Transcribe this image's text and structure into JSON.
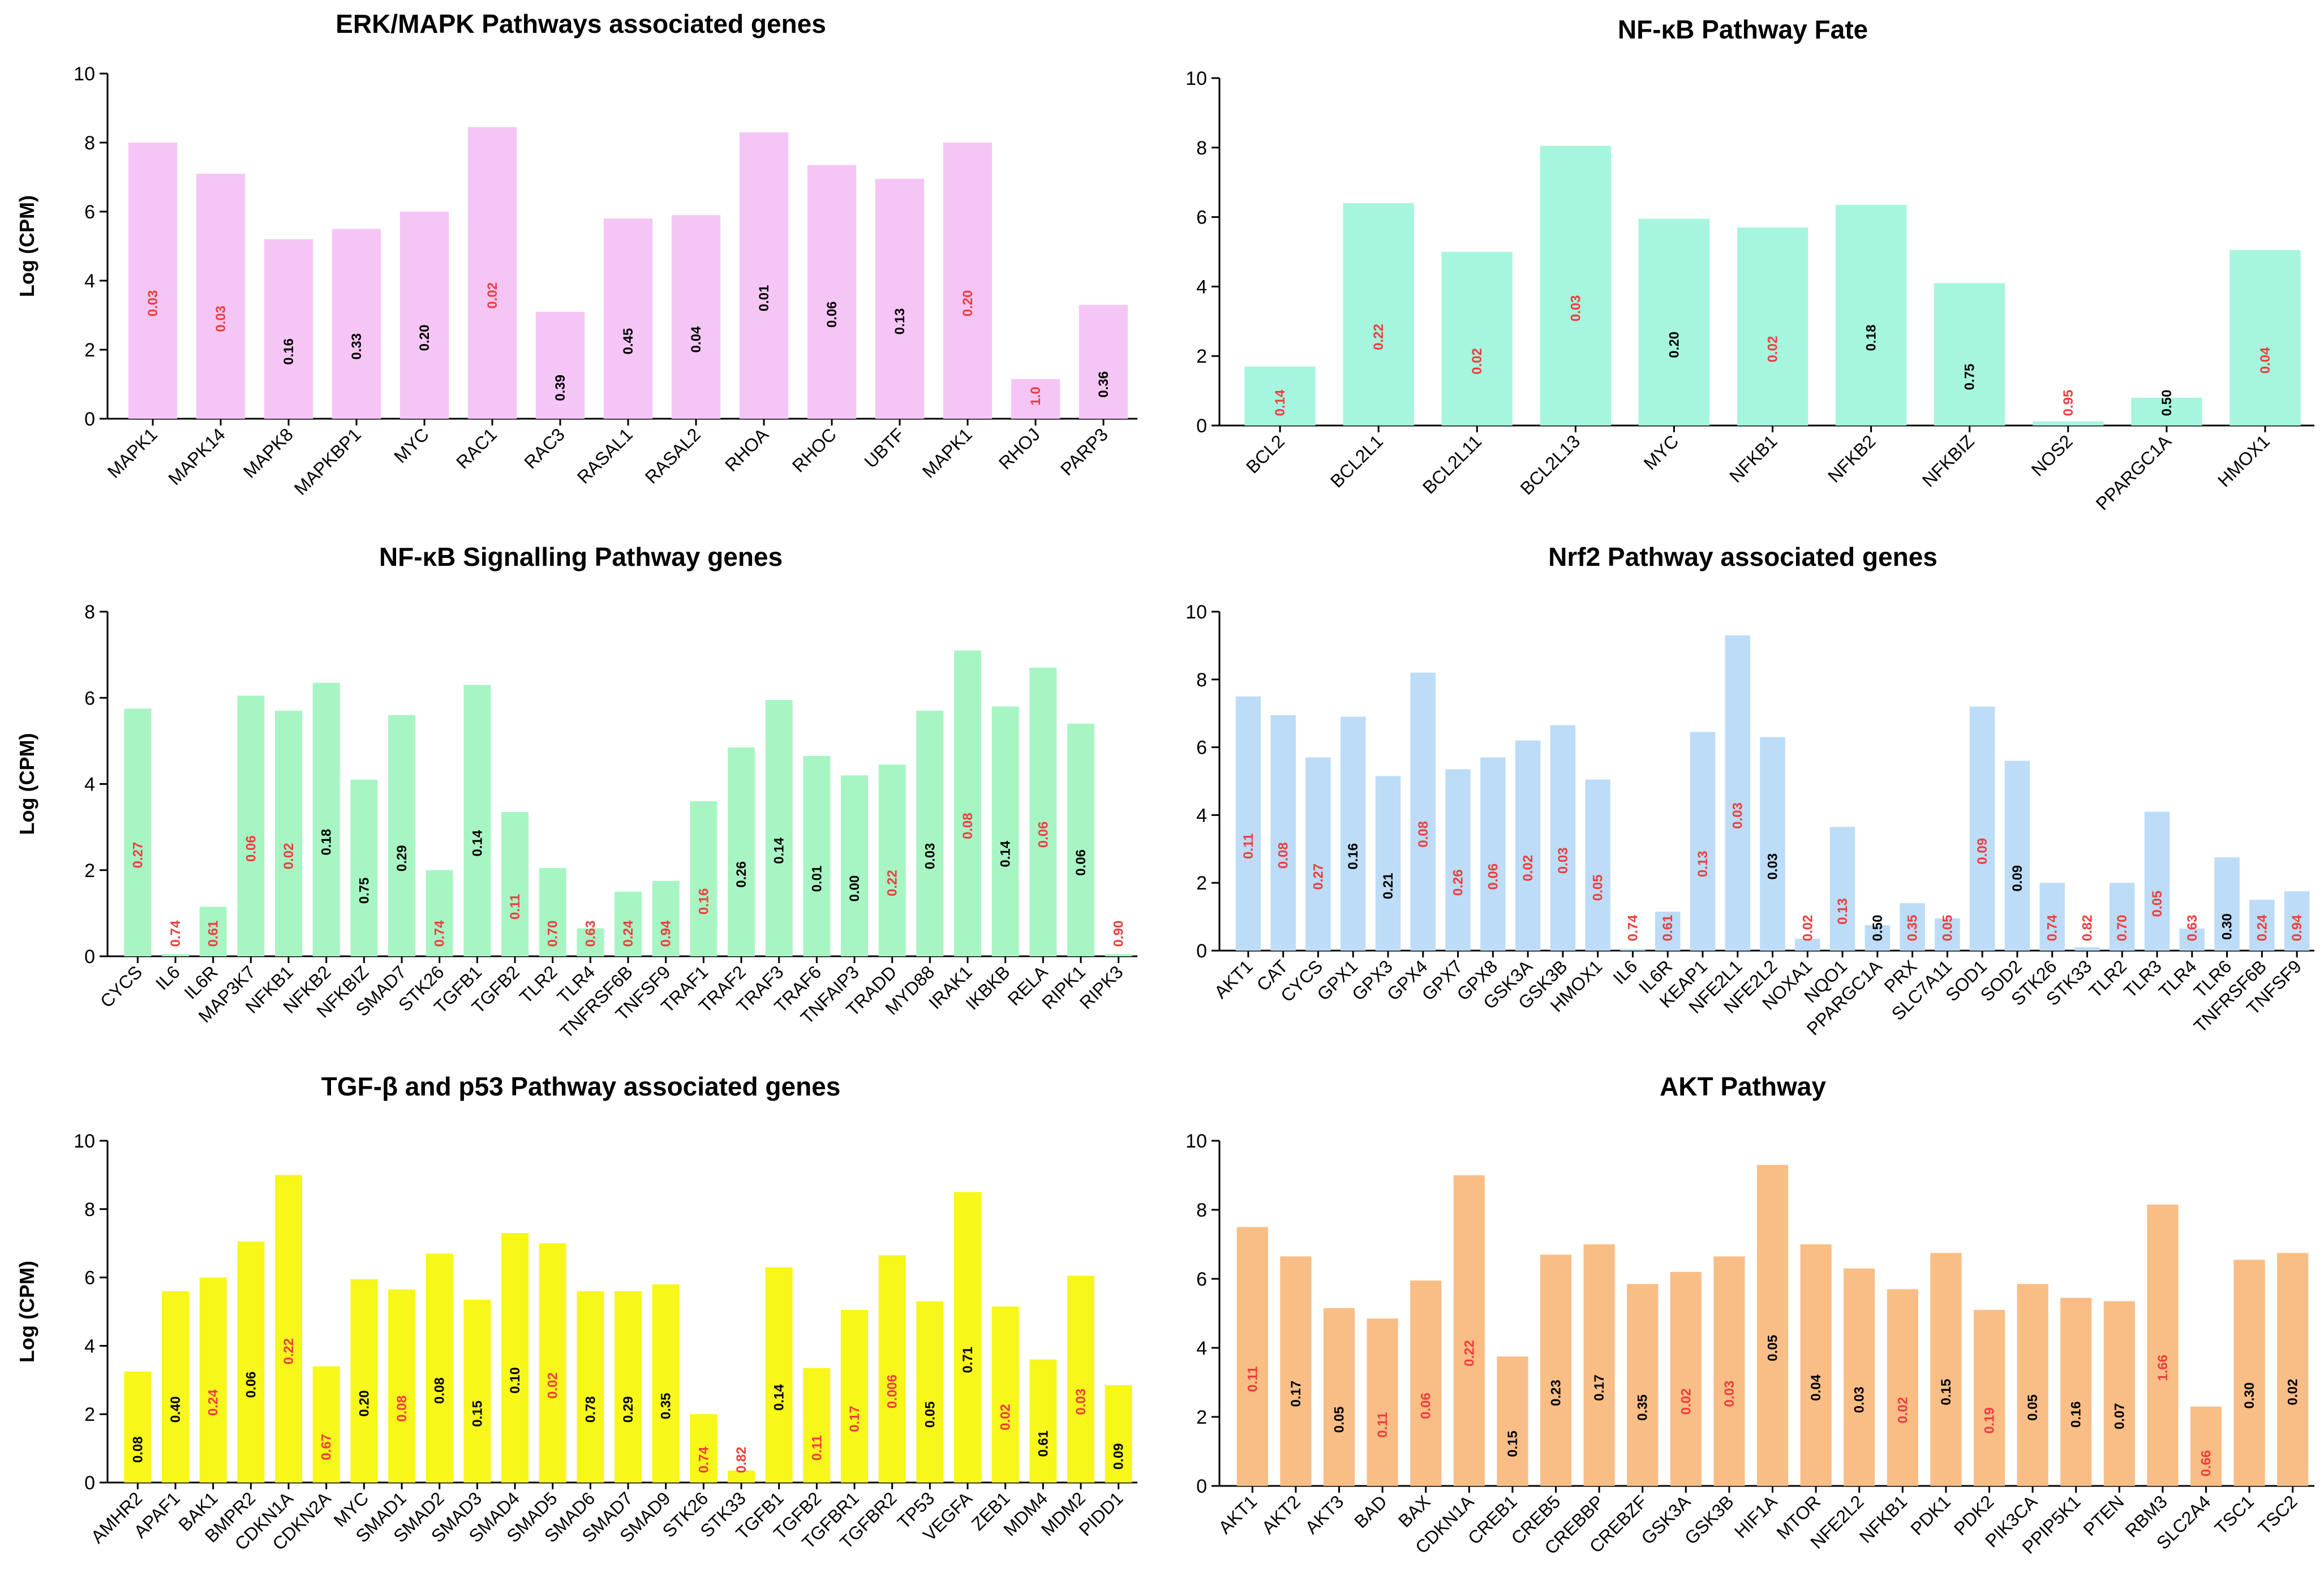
{
  "chart_data": [
    {
      "type": "bar",
      "title": "ERK/MAPK Pathways associated genes",
      "ylabel": "Log (CPM)",
      "xlabel": "",
      "ylim": [
        0,
        10
      ],
      "yticks": [
        0,
        2,
        4,
        6,
        8,
        10
      ],
      "bar_color": "#f5c6f5",
      "categories": [
        "MAPK1",
        "MAPK14",
        "MAPK8",
        "MAPKBP1",
        "MYC",
        "RAC1",
        "RAC3",
        "RASAL1",
        "RASAL2",
        "RHOA",
        "RHOC",
        "UBTF",
        "MAPK1",
        "RHOJ",
        "PARP3"
      ],
      "values": [
        8.0,
        7.1,
        5.2,
        5.5,
        6.0,
        8.45,
        3.1,
        5.8,
        5.9,
        8.3,
        7.35,
        6.95,
        8.0,
        1.15,
        3.3
      ],
      "labels": [
        "0.03",
        "0.03",
        "0.16",
        "0.33",
        "0.20",
        "0.02",
        "0.39",
        "0.45",
        "0.04",
        "0.01",
        "0.06",
        "0.13",
        "0.20",
        "1.0",
        "0.36"
      ],
      "label_colors": [
        "red",
        "red",
        "black",
        "black",
        "black",
        "red",
        "black",
        "black",
        "black",
        "black",
        "black",
        "black",
        "red",
        "red",
        "black"
      ]
    },
    {
      "type": "bar",
      "title": "NF-κB Pathway Fate",
      "ylabel": "Log (CPM)",
      "xlabel": "",
      "ylim": [
        0,
        10
      ],
      "yticks": [
        0,
        2,
        4,
        6,
        8,
        10
      ],
      "bar_color": "#a6f5df",
      "categories": [
        "BCL2",
        "BCL2L1",
        "BCL2L11",
        "BCL2L13",
        "MYC",
        "NFKB1",
        "NFKB2",
        "NFKBIZ",
        "NOS2",
        "PPARGC1A",
        "HMOX1"
      ],
      "values": [
        1.7,
        6.4,
        5.0,
        8.05,
        5.95,
        5.7,
        6.35,
        4.1,
        0.12,
        0.8,
        5.05
      ],
      "labels": [
        "0.14",
        "0.22",
        "0.02",
        "0.03",
        "0.20",
        "0.02",
        "0.18",
        "0.75",
        "0.95",
        "0.50",
        "0.04"
      ],
      "label_colors": [
        "red",
        "red",
        "red",
        "red",
        "black",
        "red",
        "black",
        "black",
        "red",
        "black",
        "red"
      ]
    },
    {
      "type": "bar",
      "title": "NF-κB Signalling Pathway genes",
      "ylabel": "Log (CPM)",
      "xlabel": "",
      "ylim": [
        0,
        8
      ],
      "yticks": [
        0,
        2,
        4,
        6,
        8
      ],
      "bar_color": "#a8f5c4",
      "categories": [
        "CYCS",
        "IL6",
        "IL6R",
        "MAP3K7",
        "NFKB1",
        "NFKB2",
        "NFKBIZ",
        "SMAD7",
        "STK26",
        "TGFB1",
        "TGFB2",
        "TLR2",
        "TLR4",
        "TNFRSF6B",
        "TNFSF9",
        "TRAF1",
        "TRAF2",
        "TRAF3",
        "TRAF6",
        "TNFAIP3",
        "TRADD",
        "MYD88",
        "IRAK1",
        "IKBKB",
        "RELA",
        "RIPK1",
        "RIPK3"
      ],
      "values": [
        5.75,
        0.05,
        1.15,
        6.05,
        5.7,
        6.35,
        4.1,
        5.6,
        2.0,
        6.3,
        3.35,
        2.05,
        0.65,
        1.5,
        1.75,
        3.6,
        4.85,
        5.95,
        4.65,
        4.2,
        4.45,
        5.7,
        7.1,
        5.8,
        6.7,
        5.4,
        0.05
      ],
      "labels": [
        "0.27",
        "0.74",
        "0.61",
        "0.06",
        "0.02",
        "0.18",
        "0.75",
        "0.29",
        "0.74",
        "0.14",
        "0.11",
        "0.70",
        "0.63",
        "0.24",
        "0.94",
        "0.16",
        "0.26",
        "0.14",
        "0.01",
        "0.00",
        "0.22",
        "0.03",
        "0.08",
        "0.14",
        "0.06",
        "0.06",
        "0.90"
      ],
      "label_colors": [
        "red",
        "red",
        "red",
        "red",
        "red",
        "black",
        "black",
        "black",
        "red",
        "black",
        "red",
        "red",
        "red",
        "red",
        "red",
        "red",
        "black",
        "black",
        "black",
        "black",
        "red",
        "black",
        "red",
        "black",
        "red",
        "black",
        "red"
      ]
    },
    {
      "type": "bar",
      "title": "Nrf2 Pathway associated genes",
      "ylabel": "Log (CPM)",
      "xlabel": "",
      "ylim": [
        0,
        10
      ],
      "yticks": [
        0,
        2,
        4,
        6,
        8,
        10
      ],
      "bar_color": "#bcdcf7",
      "categories": [
        "AKT1",
        "CAT",
        "CYCS",
        "GPX1",
        "GPX3",
        "GPX4",
        "GPX7",
        "GPX8",
        "GSK3A",
        "GSK3B",
        "HMOX1",
        "IL6",
        "IL6R",
        "KEAP1",
        "NFE2L1",
        "NFE2L2",
        "NOXA1",
        "NQO1",
        "PPARGC1A",
        "PRX",
        "SLC7A11",
        "SOD1",
        "SOD2",
        "STK26",
        "STK33",
        "TLR2",
        "TLR3",
        "TLR4",
        "TLR6",
        "TNFRSF6B",
        "TNFSF9"
      ],
      "values": [
        7.5,
        6.95,
        5.7,
        6.9,
        5.15,
        8.2,
        5.35,
        5.7,
        6.2,
        6.65,
        5.05,
        0.05,
        1.15,
        6.45,
        9.3,
        6.3,
        0.35,
        3.65,
        0.75,
        1.4,
        0.95,
        7.2,
        5.6,
        2.0,
        0.1,
        2.0,
        4.1,
        0.65,
        2.75,
        1.5,
        1.75
      ],
      "labels": [
        "0.11",
        "0.08",
        "0.27",
        "0.16",
        "0.21",
        "0.08",
        "0.26",
        "0.06",
        "0.02",
        "0.03",
        "0.05",
        "0.74",
        "0.61",
        "0.13",
        "0.03",
        "0.03",
        "0.02",
        "0.13",
        "0.50",
        "0.35",
        "0.05",
        "0.09",
        "0.09",
        "0.74",
        "0.82",
        "0.70",
        "0.05",
        "0.63",
        "0.30",
        "0.24",
        "0.94"
      ],
      "label_colors": [
        "red",
        "red",
        "red",
        "black",
        "black",
        "red",
        "red",
        "red",
        "red",
        "red",
        "red",
        "red",
        "red",
        "red",
        "red",
        "black",
        "red",
        "red",
        "black",
        "red",
        "red",
        "red",
        "black",
        "red",
        "red",
        "red",
        "red",
        "red",
        "black",
        "red",
        "red"
      ]
    },
    {
      "type": "bar",
      "title": "TGF-β and p53 Pathway associated genes",
      "ylabel": "Log (CPM)",
      "xlabel": "",
      "ylim": [
        0,
        10
      ],
      "yticks": [
        0,
        2,
        4,
        6,
        8,
        10
      ],
      "bar_color": "#f7f71a",
      "categories": [
        "AMHR2",
        "APAF1",
        "BAK1",
        "BMPR2",
        "CDKN1A",
        "CDKN2A",
        "MYC",
        "SMAD1",
        "SMAD2",
        "SMAD3",
        "SMAD4",
        "SMAD5",
        "SMAD6",
        "SMAD7",
        "SMAD9",
        "STK26",
        "STK33",
        "TGFB1",
        "TGFB2",
        "TGFBR1",
        "TGFBR2",
        "TP53",
        "VEGFA",
        "ZEB1",
        "MDM4",
        "MDM2",
        "PIDD1"
      ],
      "values": [
        3.25,
        5.6,
        6.0,
        7.05,
        9.0,
        3.4,
        5.95,
        5.65,
        6.7,
        5.35,
        7.3,
        7.0,
        5.6,
        5.6,
        5.8,
        2.0,
        0.35,
        6.3,
        3.35,
        5.05,
        6.65,
        5.3,
        8.5,
        5.15,
        3.6,
        6.05,
        2.85
      ],
      "labels": [
        "0.08",
        "0.40",
        "0.24",
        "0.06",
        "0.22",
        "0.67",
        "0.20",
        "0.08",
        "0.08",
        "0.15",
        "0.10",
        "0.02",
        "0.78",
        "0.29",
        "0.35",
        "0.74",
        "0.82",
        "0.14",
        "0.11",
        "0.17",
        "0.006",
        "0.05",
        "0.71",
        "0.02",
        "0.61",
        "0.03",
        "0.09"
      ],
      "label_colors": [
        "black",
        "black",
        "red",
        "black",
        "red",
        "red",
        "black",
        "red",
        "black",
        "black",
        "black",
        "red",
        "black",
        "black",
        "black",
        "red",
        "red",
        "black",
        "red",
        "red",
        "red",
        "black",
        "black",
        "red",
        "black",
        "red",
        "black"
      ]
    },
    {
      "type": "bar",
      "title": "AKT Pathway",
      "ylabel": "Log (CPM)",
      "xlabel": "",
      "ylim": [
        0,
        10
      ],
      "yticks": [
        0,
        2,
        4,
        6,
        8,
        10
      ],
      "bar_color": "#f9bd86",
      "categories": [
        "AKT1",
        "AKT2",
        "AKT3",
        "BAD",
        "BAX",
        "CDKN1A",
        "CREB1",
        "CREB5",
        "CREBBP",
        "CREBZF",
        "GSK3A",
        "GSK3B",
        "HIF1A",
        "MTOR",
        "NFE2L2",
        "NFKB1",
        "PDK1",
        "PDK2",
        "PIK3CA",
        "PPIP5K1",
        "PTEN",
        "RBM3",
        "SLC2A4",
        "TSC1",
        "TSC2"
      ],
      "values": [
        7.5,
        6.65,
        5.15,
        4.85,
        5.95,
        9.0,
        3.75,
        6.7,
        7.0,
        5.85,
        6.2,
        6.65,
        9.3,
        7.0,
        6.3,
        5.7,
        6.75,
        5.1,
        5.85,
        5.45,
        5.35,
        8.15,
        2.3,
        6.55,
        6.75
      ],
      "labels": [
        "0.11",
        "0.17",
        "0.05",
        "0.11",
        "0.06",
        "0.22",
        "0.15",
        "0.23",
        "0.17",
        "0.35",
        "0.02",
        "0.03",
        "0.05",
        "0.04",
        "0.03",
        "0.02",
        "0.15",
        "0.19",
        "0.05",
        "0.16",
        "0.07",
        "1.66",
        "0.66",
        "0.30",
        "0.02"
      ],
      "label_colors": [
        "red",
        "black",
        "black",
        "red",
        "red",
        "red",
        "black",
        "black",
        "black",
        "black",
        "red",
        "red",
        "black",
        "black",
        "black",
        "red",
        "black",
        "red",
        "black",
        "black",
        "black",
        "red",
        "red",
        "black",
        "black"
      ]
    }
  ]
}
